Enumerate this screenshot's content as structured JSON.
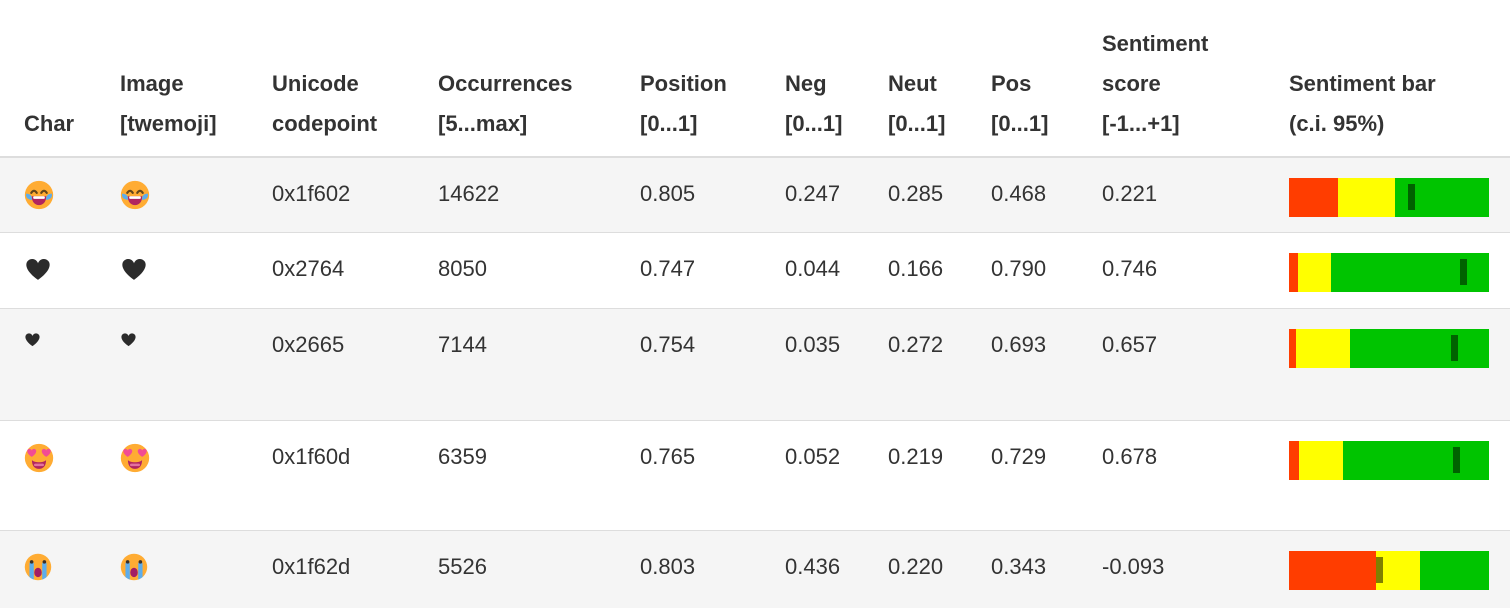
{
  "table": {
    "columns": [
      {
        "id": "char",
        "lines": [
          "Char"
        ]
      },
      {
        "id": "image",
        "lines": [
          "Image",
          "[twemoji]"
        ]
      },
      {
        "id": "codepoint",
        "lines": [
          "Unicode",
          "codepoint"
        ]
      },
      {
        "id": "occurrences",
        "lines": [
          "Occurrences",
          "[5...max]"
        ]
      },
      {
        "id": "position",
        "lines": [
          "Position",
          "[0...1]"
        ]
      },
      {
        "id": "neg",
        "lines": [
          "Neg",
          "[0...1]"
        ]
      },
      {
        "id": "neut",
        "lines": [
          "Neut",
          "[0...1]"
        ]
      },
      {
        "id": "pos",
        "lines": [
          "Pos",
          "[0...1]"
        ]
      },
      {
        "id": "score",
        "lines": [
          "Sentiment",
          "score",
          "[-1...+1]"
        ]
      },
      {
        "id": "bar",
        "lines": [
          "Sentiment bar",
          "(c.i. 95%)"
        ]
      }
    ],
    "rows": [
      {
        "char": "😂",
        "emoji": "face-with-tears-of-joy",
        "codepoint": "0x1f602",
        "occurrences": "14622",
        "position": "0.805",
        "neg": "0.247",
        "neut": "0.285",
        "pos": "0.468",
        "score": "0.221"
      },
      {
        "char": "❤",
        "emoji": "heavy-black-heart",
        "codepoint": "0x2764",
        "occurrences": "8050",
        "position": "0.747",
        "neg": "0.044",
        "neut": "0.166",
        "pos": "0.790",
        "score": "0.746"
      },
      {
        "char": "♥",
        "emoji": "black-heart-suit",
        "codepoint": "0x2665",
        "occurrences": "7144",
        "position": "0.754",
        "neg": "0.035",
        "neut": "0.272",
        "pos": "0.693",
        "score": "0.657"
      },
      {
        "char": "😍",
        "emoji": "smiling-face-with-heart-eyes",
        "codepoint": "0x1f60d",
        "occurrences": "6359",
        "position": "0.765",
        "neg": "0.052",
        "neut": "0.219",
        "pos": "0.729",
        "score": "0.678"
      },
      {
        "char": "😭",
        "emoji": "loudly-crying-face",
        "codepoint": "0x1f62d",
        "occurrences": "5526",
        "position": "0.803",
        "neg": "0.436",
        "neut": "0.220",
        "pos": "0.343",
        "score": "-0.093"
      }
    ]
  },
  "colors": {
    "bar_negative": "#FF3D00",
    "bar_neutral": "#FFFF00",
    "bar_positive": "#00C400",
    "score_marker": "rgba(0,0,0,0.5)",
    "row_stripe": "#f5f5f5",
    "border": "#dddddd",
    "text": "#333333"
  },
  "chart_data": {
    "type": "table",
    "columns": [
      "Char",
      "Image [twemoji]",
      "Unicode codepoint",
      "Occurrences [5...max]",
      "Position [0...1]",
      "Neg [0...1]",
      "Neut [0...1]",
      "Pos [0...1]",
      "Sentiment score [-1...+1]",
      "Sentiment bar (c.i. 95%)"
    ],
    "rows": [
      [
        "😂",
        "😂",
        "0x1f602",
        14622,
        0.805,
        0.247,
        0.285,
        0.468,
        0.221
      ],
      [
        "❤",
        "❤",
        "0x2764",
        8050,
        0.747,
        0.044,
        0.166,
        0.79,
        0.746
      ],
      [
        "♥",
        "♥",
        "0x2665",
        7144,
        0.754,
        0.035,
        0.272,
        0.693,
        0.657
      ],
      [
        "😍",
        "😍",
        "0x1f60d",
        6359,
        0.765,
        0.052,
        0.219,
        0.729,
        0.678
      ],
      [
        "😭",
        "😭",
        "0x1f62d",
        5526,
        0.803,
        0.436,
        0.22,
        0.343,
        -0.093
      ]
    ],
    "sentiment_bar_encoding": {
      "type": "stacked-bar",
      "segments": [
        "neg",
        "neut",
        "pos"
      ],
      "segment_colors": [
        "#FF3D00",
        "#FFFF00",
        "#00C400"
      ],
      "marker": "sentiment score mapped from [-1,+1] to [0%,100%] of bar width",
      "series": [
        {
          "name": "0x1f602",
          "values": [
            0.247,
            0.285,
            0.468
          ],
          "marker_at": 0.221
        },
        {
          "name": "0x2764",
          "values": [
            0.044,
            0.166,
            0.79
          ],
          "marker_at": 0.746
        },
        {
          "name": "0x2665",
          "values": [
            0.035,
            0.272,
            0.693
          ],
          "marker_at": 0.657
        },
        {
          "name": "0x1f60d",
          "values": [
            0.052,
            0.219,
            0.729
          ],
          "marker_at": 0.678
        },
        {
          "name": "0x1f62d",
          "values": [
            0.436,
            0.22,
            0.343
          ],
          "marker_at": -0.093
        }
      ]
    }
  }
}
